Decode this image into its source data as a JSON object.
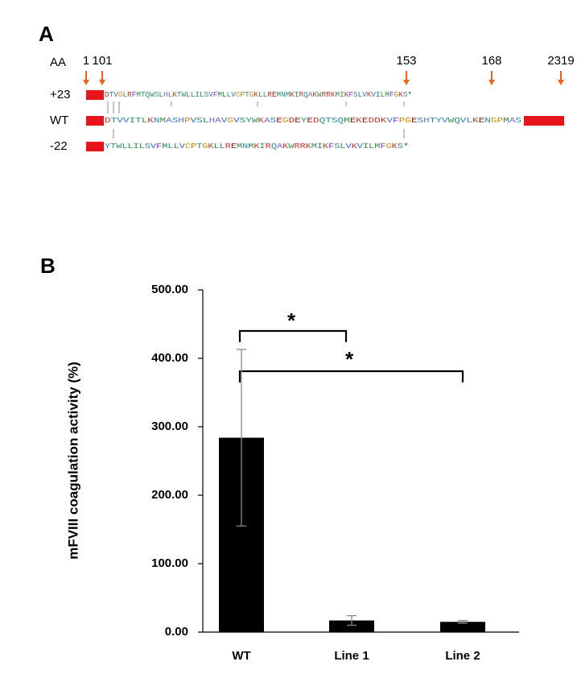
{
  "panel_a": {
    "label": "A",
    "axis_label": "AA",
    "positions": [
      "1",
      "101",
      "153",
      "168",
      "2319"
    ],
    "rows": [
      {
        "label": "+23",
        "sequence": "DTVGLRFMTQWSLHLKTWLLILSVFMLLVCPTGKLLREMNMKIRQAKWRRKMIKFSLVKVILMFGKS*"
      },
      {
        "label": "WT",
        "sequence": "DTVVITLKNMASHPVSLHAVGVSYWKASEGDEYEDQTSQMEKEDDKVFPGESHTYVWQVLKENGPMAS"
      },
      {
        "label": "-22",
        "sequence": "YTWLLILSVFMLLVCPTGKLLREMNMKIRQAKWRRKMIKFSLVKVILMFGKS*"
      }
    ]
  },
  "chart_data": {
    "type": "bar",
    "panel_label": "B",
    "y_label": "mFVIII coagulation activity (%)",
    "categories": [
      "WT",
      "Line 1",
      "Line 2"
    ],
    "values": [
      284,
      17,
      15
    ],
    "errors": [
      129,
      7,
      2
    ],
    "color": "#000000",
    "ylim": [
      0,
      500
    ],
    "yticks": [
      {
        "value": 0,
        "label": "0.00"
      },
      {
        "value": 100,
        "label": "100.00"
      },
      {
        "value": 200,
        "label": "200.00"
      },
      {
        "value": 300,
        "label": "300.00"
      },
      {
        "value": 400,
        "label": "400.00"
      },
      {
        "value": 500,
        "label": "500.00"
      }
    ],
    "annotations": [
      "*",
      "*"
    ]
  }
}
